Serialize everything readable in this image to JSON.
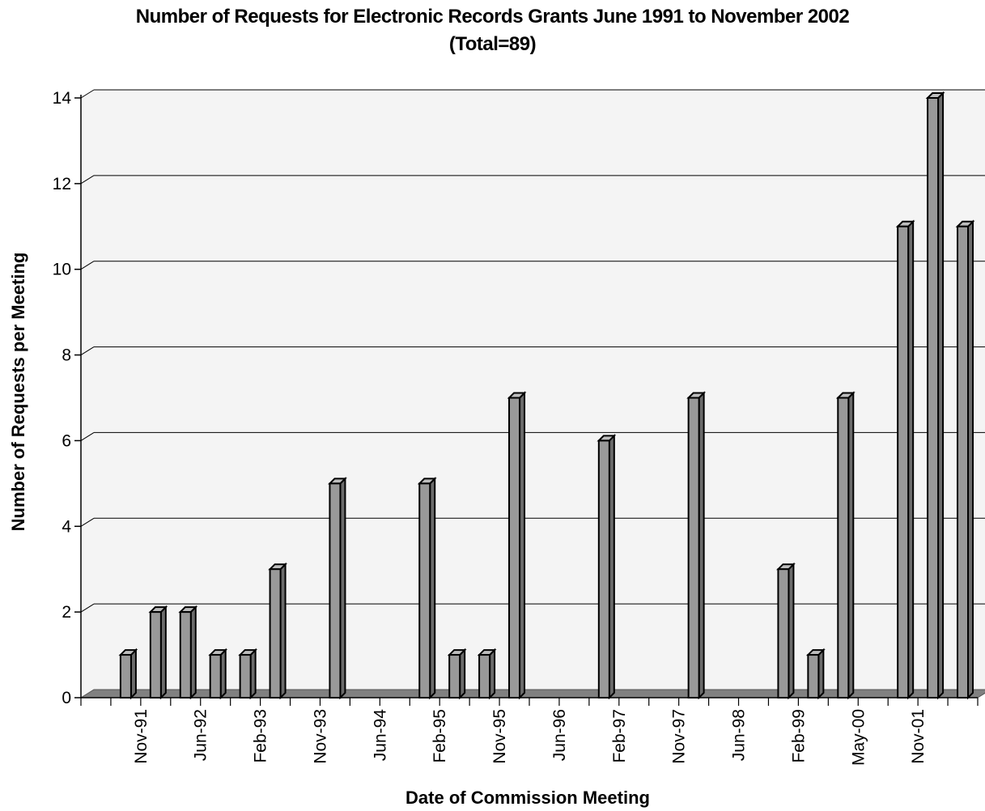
{
  "chart_data": {
    "type": "bar",
    "title": "Number of Requests for Electronic Records Grants June 1991 to November 2002",
    "subtitle": "(Total=89)",
    "xlabel": "Date of Commission Meeting",
    "ylabel": "Number of Requests per Meeting",
    "ylim": [
      0,
      14
    ],
    "yticks": [
      0,
      2,
      4,
      6,
      8,
      10,
      12,
      14
    ],
    "grid": true,
    "x_tick_labels": [
      "Nov-91",
      "Jun-92",
      "Feb-93",
      "Nov-93",
      "Jun-94",
      "Feb-95",
      "Nov-95",
      "Jun-96",
      "Feb-97",
      "Nov-97",
      "Jun-98",
      "Feb-99",
      "May-00",
      "Nov-01"
    ],
    "values": [
      1,
      2,
      2,
      1,
      1,
      3,
      0,
      5,
      0,
      0,
      5,
      1,
      1,
      7,
      0,
      0,
      6,
      0,
      0,
      7,
      0,
      0,
      3,
      1,
      7,
      0,
      11,
      14,
      11
    ],
    "colors": {
      "bar": "#999999",
      "bar_side": "#6b6b6b",
      "bar_top": "#bdbdbd",
      "floor": "#808080",
      "plot_bg": "#f4f4f4"
    }
  }
}
